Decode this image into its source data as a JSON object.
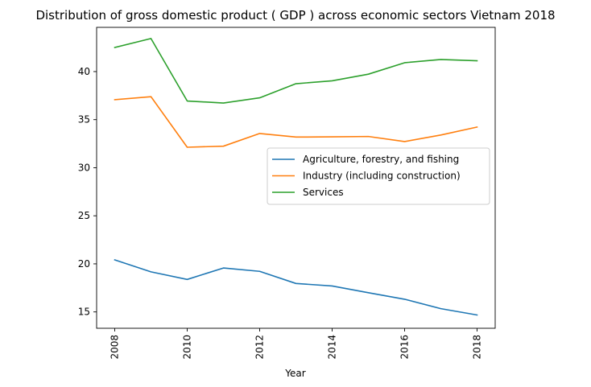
{
  "chart_data": {
    "type": "line",
    "title": "Distribution of gross domestic product ( GDP ) across economic sectors Vietnam 2018",
    "xlabel": "Year",
    "ylabel": "",
    "x": [
      2008,
      2009,
      2010,
      2011,
      2012,
      2013,
      2014,
      2015,
      2016,
      2017,
      2018
    ],
    "xlim": [
      2007.5,
      2018.5
    ],
    "ylim": [
      13.3,
      44.6
    ],
    "xticks": [
      2008,
      2010,
      2012,
      2014,
      2016,
      2018
    ],
    "yticks": [
      15,
      20,
      25,
      30,
      35,
      40
    ],
    "grid": false,
    "legend_position": "center-right",
    "series": [
      {
        "name": "Agriculture, forestry, and fishing",
        "color": "#1f77b4",
        "values": [
          20.41,
          19.17,
          18.38,
          19.57,
          19.22,
          17.96,
          17.7,
          17.0,
          16.32,
          15.34,
          14.68
        ]
      },
      {
        "name": "Industry (including construction)",
        "color": "#ff7f0e",
        "values": [
          37.08,
          37.39,
          32.13,
          32.24,
          33.56,
          33.19,
          33.21,
          33.25,
          32.72,
          33.4,
          34.23
        ]
      },
      {
        "name": "Services",
        "color": "#2ca02c",
        "values": [
          42.51,
          43.44,
          36.94,
          36.73,
          37.27,
          38.74,
          39.04,
          39.73,
          40.92,
          41.26,
          41.12
        ]
      }
    ]
  }
}
